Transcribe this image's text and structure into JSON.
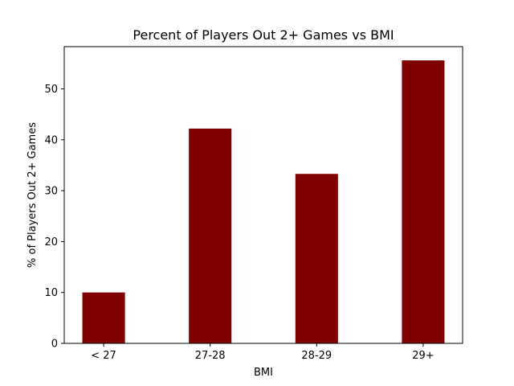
{
  "chart_data": {
    "type": "bar",
    "title": "Percent of Players Out 2+ Games vs BMI",
    "xlabel": "BMI",
    "ylabel": "% of Players Out 2+ Games",
    "categories": [
      "< 27",
      "27-28",
      "28-29",
      "29+"
    ],
    "values": [
      10.0,
      42.2,
      33.3,
      55.6
    ],
    "ylim": [
      0,
      58.3
    ],
    "yticks": [
      0,
      10,
      20,
      30,
      40,
      50
    ],
    "bar_color": "#800000",
    "grid": false,
    "legend": "none"
  }
}
